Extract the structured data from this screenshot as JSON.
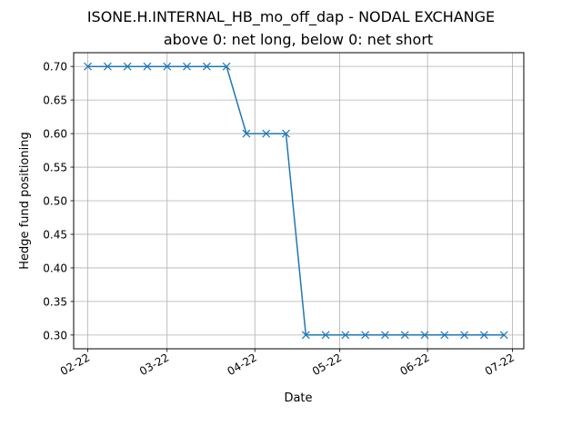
{
  "chart_data": {
    "type": "line",
    "title": "ISONE.H.INTERNAL_HB_mo_off_dap - NODAL EXCHANGE",
    "subtitle": "above 0: net long, below 0: net short",
    "xlabel": "Date",
    "ylabel": "Hedge fund positioning",
    "grid": true,
    "marker": "x",
    "line_color": "#1f77b4",
    "x_ticks": [
      {
        "date": "2022-02-01",
        "label": "02-22"
      },
      {
        "date": "2022-03-01",
        "label": "03-22"
      },
      {
        "date": "2022-04-01",
        "label": "04-22"
      },
      {
        "date": "2022-05-01",
        "label": "05-22"
      },
      {
        "date": "2022-06-01",
        "label": "06-22"
      },
      {
        "date": "2022-07-01",
        "label": "07-22"
      }
    ],
    "y_ticks": [
      0.3,
      0.35,
      0.4,
      0.45,
      0.5,
      0.55,
      0.6,
      0.65,
      0.7
    ],
    "x_range": [
      "2022-01-27",
      "2022-07-05"
    ],
    "ylim": [
      0.2795,
      0.7205
    ],
    "series": [
      {
        "x": [
          "2022-02-01",
          "2022-02-08",
          "2022-02-15",
          "2022-02-22",
          "2022-03-01",
          "2022-03-08",
          "2022-03-15",
          "2022-03-22",
          "2022-03-29",
          "2022-04-05",
          "2022-04-12",
          "2022-04-19",
          "2022-04-26",
          "2022-05-03",
          "2022-05-10",
          "2022-05-17",
          "2022-05-24",
          "2022-05-31",
          "2022-06-07",
          "2022-06-14",
          "2022-06-21",
          "2022-06-28"
        ],
        "values": [
          0.7,
          0.7,
          0.7,
          0.7,
          0.7,
          0.7,
          0.7,
          0.7,
          0.6,
          0.6,
          0.6,
          0.3,
          0.3,
          0.3,
          0.3,
          0.3,
          0.3,
          0.3,
          0.3,
          0.3,
          0.3,
          0.3
        ]
      }
    ]
  }
}
